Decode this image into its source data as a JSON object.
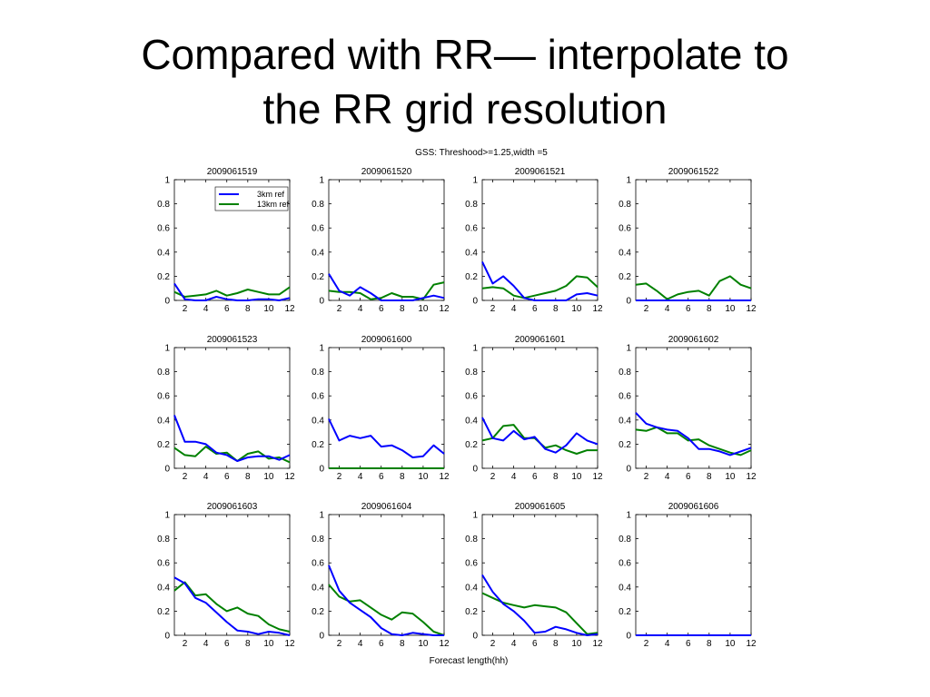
{
  "slide": {
    "title_line1": "Compared with RR— interpolate to",
    "title_line2": "the RR grid resolution"
  },
  "figure": {
    "suptitle": "GSS: Threshood>=1.25,width =5",
    "xlabel": "Forecast length(hh)",
    "colors": {
      "3km ref": "#0000ff",
      "13km ref": "#008000"
    }
  },
  "chart_data": [
    {
      "type": "line",
      "title": "2009061519",
      "x": [
        1,
        2,
        3,
        4,
        5,
        6,
        7,
        8,
        9,
        10,
        11,
        12
      ],
      "xlim": [
        1,
        12
      ],
      "ylim": [
        0,
        1
      ],
      "xticks": [
        2,
        4,
        6,
        8,
        10,
        12
      ],
      "yticks": [
        0,
        0.2,
        0.4,
        0.6,
        0.8,
        1
      ],
      "legend": "top-right",
      "series": [
        {
          "name": "3km ref",
          "values": [
            0.14,
            0.01,
            0.0,
            0.0,
            0.03,
            0.01,
            0.0,
            0.0,
            0.01,
            0.01,
            0.0,
            0.02
          ]
        },
        {
          "name": "13km ref",
          "values": [
            0.07,
            0.03,
            0.04,
            0.05,
            0.08,
            0.04,
            0.06,
            0.09,
            0.07,
            0.05,
            0.05,
            0.11
          ]
        }
      ]
    },
    {
      "type": "line",
      "title": "2009061520",
      "x": [
        1,
        2,
        3,
        4,
        5,
        6,
        7,
        8,
        9,
        10,
        11,
        12
      ],
      "xlim": [
        1,
        12
      ],
      "ylim": [
        0,
        1
      ],
      "xticks": [
        2,
        4,
        6,
        8,
        10,
        12
      ],
      "yticks": [
        0,
        0.2,
        0.4,
        0.6,
        0.8,
        1
      ],
      "series": [
        {
          "name": "3km ref",
          "values": [
            0.22,
            0.08,
            0.04,
            0.11,
            0.06,
            0.0,
            0.0,
            0.0,
            0.0,
            0.02,
            0.04,
            0.02
          ]
        },
        {
          "name": "13km ref",
          "values": [
            0.08,
            0.07,
            0.07,
            0.06,
            0.01,
            0.02,
            0.06,
            0.03,
            0.03,
            0.01,
            0.13,
            0.15
          ]
        }
      ]
    },
    {
      "type": "line",
      "title": "2009061521",
      "x": [
        1,
        2,
        3,
        4,
        5,
        6,
        7,
        8,
        9,
        10,
        11,
        12
      ],
      "xlim": [
        1,
        12
      ],
      "ylim": [
        0,
        1
      ],
      "xticks": [
        2,
        4,
        6,
        8,
        10,
        12
      ],
      "yticks": [
        0,
        0.2,
        0.4,
        0.6,
        0.8,
        1
      ],
      "series": [
        {
          "name": "3km ref",
          "values": [
            0.32,
            0.14,
            0.2,
            0.12,
            0.02,
            0.0,
            0.0,
            0.0,
            0.0,
            0.05,
            0.06,
            0.04
          ]
        },
        {
          "name": "13km ref",
          "values": [
            0.1,
            0.11,
            0.1,
            0.04,
            0.02,
            0.04,
            0.06,
            0.08,
            0.12,
            0.2,
            0.19,
            0.11
          ]
        }
      ]
    },
    {
      "type": "line",
      "title": "2009061522",
      "x": [
        1,
        2,
        3,
        4,
        5,
        6,
        7,
        8,
        9,
        10,
        11,
        12
      ],
      "xlim": [
        1,
        12
      ],
      "ylim": [
        0,
        1
      ],
      "xticks": [
        2,
        4,
        6,
        8,
        10,
        12
      ],
      "yticks": [
        0,
        0.2,
        0.4,
        0.6,
        0.8,
        1
      ],
      "series": [
        {
          "name": "3km ref",
          "values": [
            0,
            0,
            0,
            0,
            0,
            0,
            0,
            0,
            0,
            0,
            0,
            0
          ]
        },
        {
          "name": "13km ref",
          "values": [
            0.13,
            0.14,
            0.08,
            0.01,
            0.05,
            0.07,
            0.08,
            0.04,
            0.16,
            0.2,
            0.13,
            0.1
          ]
        }
      ]
    },
    {
      "type": "line",
      "title": "2009061523",
      "x": [
        1,
        2,
        3,
        4,
        5,
        6,
        7,
        8,
        9,
        10,
        11,
        12
      ],
      "xlim": [
        1,
        12
      ],
      "ylim": [
        0,
        1
      ],
      "xticks": [
        2,
        4,
        6,
        8,
        10,
        12
      ],
      "yticks": [
        0,
        0.2,
        0.4,
        0.6,
        0.8,
        1
      ],
      "series": [
        {
          "name": "3km ref",
          "values": [
            0.44,
            0.22,
            0.22,
            0.2,
            0.13,
            0.11,
            0.06,
            0.09,
            0.1,
            0.1,
            0.07,
            0.11
          ]
        },
        {
          "name": "13km ref",
          "values": [
            0.17,
            0.11,
            0.1,
            0.18,
            0.12,
            0.13,
            0.06,
            0.12,
            0.14,
            0.08,
            0.09,
            0.05
          ]
        }
      ]
    },
    {
      "type": "line",
      "title": "2009061600",
      "x": [
        1,
        2,
        3,
        4,
        5,
        6,
        7,
        8,
        9,
        10,
        11,
        12
      ],
      "xlim": [
        1,
        12
      ],
      "ylim": [
        0,
        1
      ],
      "xticks": [
        2,
        4,
        6,
        8,
        10,
        12
      ],
      "yticks": [
        0,
        0.2,
        0.4,
        0.6,
        0.8,
        1
      ],
      "series": [
        {
          "name": "3km ref",
          "values": [
            0.41,
            0.23,
            0.27,
            0.25,
            0.27,
            0.18,
            0.19,
            0.15,
            0.09,
            0.1,
            0.19,
            0.12
          ]
        },
        {
          "name": "13km ref",
          "values": [
            0,
            0,
            0,
            0,
            0,
            0,
            0,
            0,
            0,
            0,
            0,
            0
          ]
        }
      ]
    },
    {
      "type": "line",
      "title": "2009061601",
      "x": [
        1,
        2,
        3,
        4,
        5,
        6,
        7,
        8,
        9,
        10,
        11,
        12
      ],
      "xlim": [
        1,
        12
      ],
      "ylim": [
        0,
        1
      ],
      "xticks": [
        2,
        4,
        6,
        8,
        10,
        12
      ],
      "yticks": [
        0,
        0.2,
        0.4,
        0.6,
        0.8,
        1
      ],
      "series": [
        {
          "name": "3km ref",
          "values": [
            0.42,
            0.25,
            0.23,
            0.31,
            0.24,
            0.26,
            0.16,
            0.13,
            0.19,
            0.29,
            0.23,
            0.2
          ]
        },
        {
          "name": "13km ref",
          "values": [
            0.23,
            0.25,
            0.35,
            0.36,
            0.25,
            0.25,
            0.17,
            0.19,
            0.15,
            0.12,
            0.15,
            0.15
          ]
        }
      ]
    },
    {
      "type": "line",
      "title": "2009061602",
      "x": [
        1,
        2,
        3,
        4,
        5,
        6,
        7,
        8,
        9,
        10,
        11,
        12
      ],
      "xlim": [
        1,
        12
      ],
      "ylim": [
        0,
        1
      ],
      "xticks": [
        2,
        4,
        6,
        8,
        10,
        12
      ],
      "yticks": [
        0,
        0.2,
        0.4,
        0.6,
        0.8,
        1
      ],
      "series": [
        {
          "name": "3km ref",
          "values": [
            0.46,
            0.37,
            0.34,
            0.32,
            0.31,
            0.25,
            0.16,
            0.16,
            0.14,
            0.11,
            0.14,
            0.17
          ]
        },
        {
          "name": "13km ref",
          "values": [
            0.32,
            0.31,
            0.34,
            0.29,
            0.29,
            0.23,
            0.24,
            0.19,
            0.16,
            0.13,
            0.11,
            0.15
          ]
        }
      ]
    },
    {
      "type": "line",
      "title": "2009061603",
      "x": [
        1,
        2,
        3,
        4,
        5,
        6,
        7,
        8,
        9,
        10,
        11,
        12
      ],
      "xlim": [
        1,
        12
      ],
      "ylim": [
        0,
        1
      ],
      "xticks": [
        2,
        4,
        6,
        8,
        10,
        12
      ],
      "yticks": [
        0,
        0.2,
        0.4,
        0.6,
        0.8,
        1
      ],
      "series": [
        {
          "name": "3km ref",
          "values": [
            0.48,
            0.43,
            0.31,
            0.27,
            0.19,
            0.11,
            0.04,
            0.03,
            0.01,
            0.03,
            0.02,
            0.0
          ]
        },
        {
          "name": "13km ref",
          "values": [
            0.37,
            0.44,
            0.33,
            0.34,
            0.26,
            0.2,
            0.23,
            0.18,
            0.16,
            0.09,
            0.05,
            0.03
          ]
        }
      ]
    },
    {
      "type": "line",
      "title": "2009061604",
      "x": [
        1,
        2,
        3,
        4,
        5,
        6,
        7,
        8,
        9,
        10,
        11,
        12
      ],
      "xlim": [
        1,
        12
      ],
      "ylim": [
        0,
        1
      ],
      "xticks": [
        2,
        4,
        6,
        8,
        10,
        12
      ],
      "yticks": [
        0,
        0.2,
        0.4,
        0.6,
        0.8,
        1
      ],
      "series": [
        {
          "name": "3km ref",
          "values": [
            0.58,
            0.37,
            0.27,
            0.21,
            0.15,
            0.06,
            0.01,
            0.0,
            0.02,
            0.01,
            0.0,
            0.0
          ]
        },
        {
          "name": "13km ref",
          "values": [
            0.42,
            0.32,
            0.28,
            0.29,
            0.23,
            0.17,
            0.13,
            0.19,
            0.18,
            0.11,
            0.03,
            0.0
          ]
        }
      ]
    },
    {
      "type": "line",
      "title": "2009061605",
      "x": [
        1,
        2,
        3,
        4,
        5,
        6,
        7,
        8,
        9,
        10,
        11,
        12
      ],
      "xlim": [
        1,
        12
      ],
      "ylim": [
        0,
        1
      ],
      "xticks": [
        2,
        4,
        6,
        8,
        10,
        12
      ],
      "yticks": [
        0,
        0.2,
        0.4,
        0.6,
        0.8,
        1
      ],
      "series": [
        {
          "name": "3km ref",
          "values": [
            0.5,
            0.36,
            0.26,
            0.2,
            0.12,
            0.02,
            0.03,
            0.07,
            0.05,
            0.02,
            0.0,
            0.01
          ]
        },
        {
          "name": "13km ref",
          "values": [
            0.35,
            0.31,
            0.27,
            0.25,
            0.23,
            0.25,
            0.24,
            0.23,
            0.19,
            0.1,
            0.01,
            0.02
          ]
        }
      ]
    },
    {
      "type": "line",
      "title": "2009061606",
      "x": [
        1,
        2,
        3,
        4,
        5,
        6,
        7,
        8,
        9,
        10,
        11,
        12
      ],
      "xlim": [
        1,
        12
      ],
      "ylim": [
        0,
        1
      ],
      "xticks": [
        2,
        4,
        6,
        8,
        10,
        12
      ],
      "yticks": [
        0,
        0.2,
        0.4,
        0.6,
        0.8,
        1
      ],
      "series": [
        {
          "name": "3km ref",
          "values": [
            0,
            0,
            0,
            0,
            0,
            0,
            0,
            0,
            0,
            0,
            0,
            0
          ]
        },
        {
          "name": "13km ref",
          "values": [
            0,
            0,
            0,
            0,
            0,
            0,
            0,
            0,
            0,
            0,
            0,
            0
          ]
        }
      ]
    }
  ]
}
